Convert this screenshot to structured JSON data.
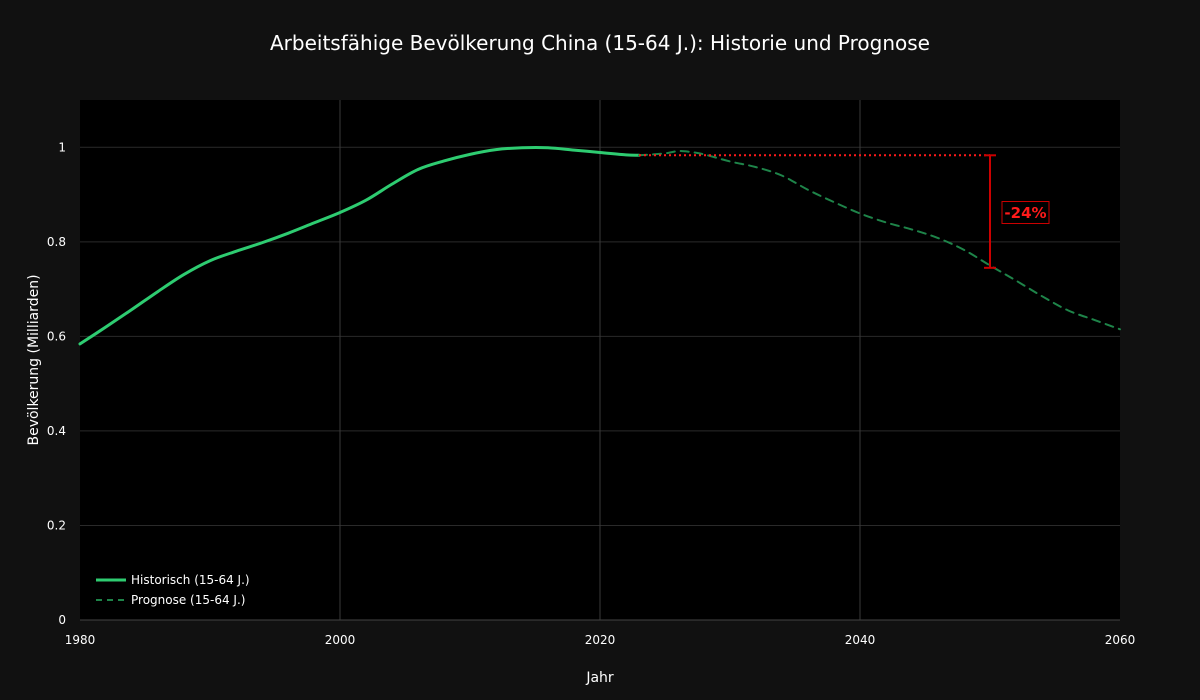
{
  "chart_data": {
    "type": "line",
    "title": "Arbeitsfähige Bevölkerung China (15-64 J.): Historie und Prognose",
    "xlabel": "Jahr",
    "ylabel": "Bevölkerung (Milliarden)",
    "xlim": [
      1980,
      2060
    ],
    "ylim": [
      0,
      1.1
    ],
    "xticks": [
      1980,
      2000,
      2020,
      2040,
      2060
    ],
    "xtick_labels": [
      "1980",
      "2000",
      "2020",
      "2040",
      "2060"
    ],
    "yticks": [
      0,
      0.2,
      0.4,
      0.6,
      0.8,
      1
    ],
    "ytick_labels": [
      "0",
      "0.2",
      "0.4",
      "0.6",
      "0.8",
      "1"
    ],
    "grid": true,
    "legend_position": "bottom-left",
    "series": [
      {
        "name": "Historisch (15-64 J.)",
        "style": "solid",
        "color": "#2ecc71",
        "x": [
          1980,
          1982,
          1984,
          1986,
          1988,
          1990,
          1992,
          1994,
          1996,
          1998,
          2000,
          2002,
          2004,
          2006,
          2008,
          2010,
          2012,
          2014,
          2016,
          2018,
          2020,
          2022,
          2023
        ],
        "y": [
          0.584,
          0.62,
          0.657,
          0.695,
          0.731,
          0.76,
          0.78,
          0.798,
          0.818,
          0.84,
          0.862,
          0.888,
          0.922,
          0.953,
          0.971,
          0.985,
          0.995,
          0.999,
          0.999,
          0.994,
          0.989,
          0.984,
          0.983
        ]
      },
      {
        "name": "Prognose (15-64 J.)",
        "style": "dashed",
        "color": "#1e8449",
        "x": [
          2023,
          2025,
          2026,
          2027,
          2028,
          2030,
          2032,
          2034,
          2036,
          2038,
          2040,
          2042,
          2044,
          2046,
          2048,
          2050,
          2052,
          2054,
          2056,
          2058,
          2060
        ],
        "y": [
          0.983,
          0.987,
          0.992,
          0.99,
          0.985,
          0.97,
          0.958,
          0.94,
          0.91,
          0.884,
          0.86,
          0.841,
          0.826,
          0.808,
          0.783,
          0.75,
          0.718,
          0.685,
          0.655,
          0.635,
          0.615
        ]
      }
    ],
    "annotations": [
      {
        "type": "reference-line",
        "style": "dotted",
        "color": "#ff1a1a",
        "x_start": 2023,
        "x_end": 2050,
        "y": 0.983
      },
      {
        "type": "bracket",
        "color": "#cc0000",
        "x": 2050,
        "y_top": 0.983,
        "y_bottom": 0.745
      },
      {
        "type": "label",
        "text": "-24%",
        "color": "#ff1a1a",
        "x": 2050,
        "y": 0.862
      }
    ],
    "colors": {
      "background": "#111111",
      "plot_background": "#000000",
      "grid": "#2a2a2a",
      "text": "#ffffff"
    }
  }
}
